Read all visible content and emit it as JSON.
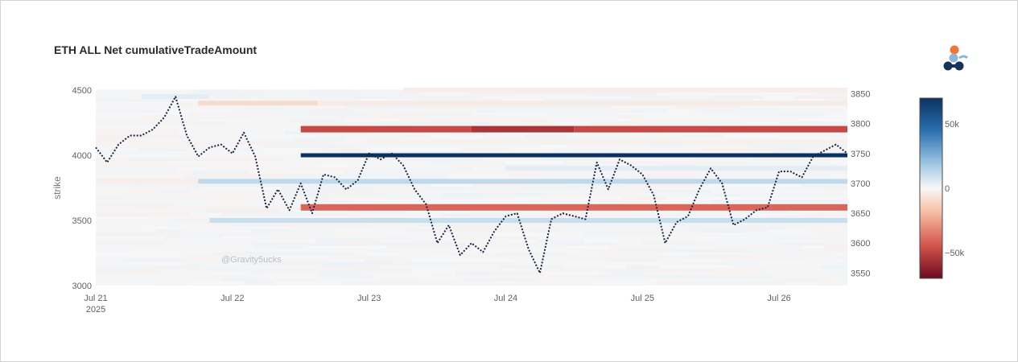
{
  "colors": {
    "price_line": "#1a2540",
    "positive": "#0d3b66",
    "negative": "#c6353a",
    "plot_bg": "#f5f6f8",
    "logo_orange": "#f07537",
    "logo_lightblue": "#8fb4da",
    "logo_navy": "#17325a"
  },
  "watermark": "@Gravity5ucks",
  "chart_data": {
    "type": "heatmap",
    "title": "ETH ALL Net cumulativeTradeAmount",
    "xlabel": "",
    "ylabel": "strike",
    "y2label": "",
    "x_range": [
      "2025-07-21 00:00",
      "2025-07-26 12:00"
    ],
    "x_ticks": [
      {
        "date": "2025-07-21",
        "label": "Jul 21",
        "sublabel": "2025"
      },
      {
        "date": "2025-07-22",
        "label": "Jul 22",
        "sublabel": ""
      },
      {
        "date": "2025-07-23",
        "label": "Jul 23",
        "sublabel": ""
      },
      {
        "date": "2025-07-24",
        "label": "Jul 24",
        "sublabel": ""
      },
      {
        "date": "2025-07-25",
        "label": "Jul 25",
        "sublabel": ""
      },
      {
        "date": "2025-07-26",
        "label": "Jul 26",
        "sublabel": ""
      }
    ],
    "y_range": [
      3000,
      4500
    ],
    "y_ticks": [
      3000,
      3500,
      4000,
      4500
    ],
    "y2_range": [
      3529,
      3856
    ],
    "y2_ticks": [
      3550,
      3600,
      3650,
      3700,
      3750,
      3800,
      3850
    ],
    "colorscale": {
      "min": -70000,
      "max": 70000,
      "ticks": [
        {
          "value": 50000,
          "label": "50k"
        },
        {
          "value": 0,
          "label": "0"
        },
        {
          "value": -50000,
          "label": "−50k"
        }
      ]
    },
    "heatmap_bands": [
      {
        "strike": 4400,
        "start": "2025-07-21 18:00",
        "end": "2025-07-22 15:00",
        "value": -9000
      },
      {
        "strike": 4400,
        "start": "2025-07-22 15:00",
        "end": "2025-07-26 12:00",
        "value": -4000
      },
      {
        "strike": 4500,
        "start": "2025-07-23 06:00",
        "end": "2025-07-26 12:00",
        "value": -3000
      },
      {
        "strike": 4200,
        "start": "2025-07-22 12:00",
        "end": "2025-07-23 18:00",
        "value": -48000
      },
      {
        "strike": 4200,
        "start": "2025-07-23 18:00",
        "end": "2025-07-24 12:00",
        "value": -55000
      },
      {
        "strike": 4200,
        "start": "2025-07-24 12:00",
        "end": "2025-07-26 12:00",
        "value": -48000
      },
      {
        "strike": 4000,
        "start": "2025-07-22 12:00",
        "end": "2025-07-26 12:00",
        "value": 70000
      },
      {
        "strike": 3800,
        "start": "2025-07-21 18:00",
        "end": "2025-07-26 12:00",
        "value": 12000
      },
      {
        "strike": 3600,
        "start": "2025-07-22 12:00",
        "end": "2025-07-26 12:00",
        "value": -40000
      },
      {
        "strike": 3500,
        "start": "2025-07-21 20:00",
        "end": "2025-07-26 12:00",
        "value": 10000
      },
      {
        "strike": 4100,
        "start": "2025-07-23 00:00",
        "end": "2025-07-26 12:00",
        "value": -2000
      },
      {
        "strike": 3900,
        "start": "2025-07-24 00:00",
        "end": "2025-07-26 12:00",
        "value": 4000
      },
      {
        "strike": 4450,
        "start": "2025-07-21 08:00",
        "end": "2025-07-21 20:00",
        "value": 4000
      },
      {
        "strike": 3800,
        "start": "2025-07-21 00:00",
        "end": "2025-07-21 18:00",
        "value": -3000
      }
    ],
    "price_series": {
      "dash": "dotted",
      "t_hours": [
        0,
        2,
        4,
        6,
        8,
        10,
        12,
        14,
        16,
        18,
        20,
        22,
        24,
        26,
        28,
        30,
        32,
        34,
        36,
        38,
        40,
        42,
        44,
        46,
        48,
        50,
        52,
        54,
        56,
        58,
        60,
        62,
        64,
        66,
        68,
        70,
        72,
        74,
        76,
        78,
        80,
        82,
        84,
        86,
        88,
        90,
        92,
        94,
        96,
        98,
        100,
        102,
        104,
        106,
        108,
        110,
        112,
        114,
        116,
        118,
        120,
        122,
        124,
        126,
        128,
        130,
        132
      ],
      "values": [
        3760,
        3735,
        3765,
        3780,
        3780,
        3790,
        3810,
        3845,
        3780,
        3745,
        3760,
        3765,
        3750,
        3785,
        3745,
        3658,
        3690,
        3655,
        3700,
        3650,
        3715,
        3710,
        3690,
        3705,
        3750,
        3740,
        3750,
        3730,
        3690,
        3665,
        3600,
        3630,
        3580,
        3600,
        3585,
        3620,
        3645,
        3650,
        3590,
        3550,
        3640,
        3650,
        3645,
        3640,
        3735,
        3690,
        3740,
        3730,
        3715,
        3680,
        3600,
        3635,
        3645,
        3690,
        3725,
        3700,
        3630,
        3640,
        3655,
        3660,
        3720,
        3720,
        3710,
        3745,
        3755,
        3765,
        3750
      ]
    }
  }
}
